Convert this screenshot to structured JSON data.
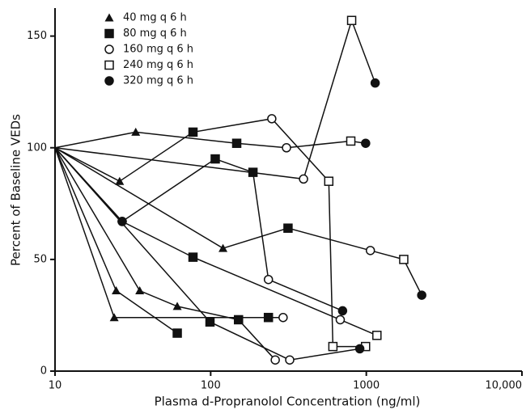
{
  "chart_data": {
    "type": "line",
    "xlabel": "Plasma d-Propranolol Concentration (ng/ml)",
    "ylabel": "Percent of Baseline VEDs",
    "xscale": "log",
    "xlim": [
      10,
      10000
    ],
    "ylim": [
      0,
      160
    ],
    "xticks": [
      10,
      100,
      1000,
      {
        "value": 10000,
        "label": "10,000"
      }
    ],
    "yticks": [
      0,
      50,
      100,
      150
    ],
    "color": "#111111",
    "legend": "upper left",
    "series": [
      {
        "name": "40 mg q 6 h",
        "marker": "triangle"
      },
      {
        "name": "80 mg q 6 h",
        "marker": "square"
      },
      {
        "name": "160 mg q 6 h",
        "marker": "open-circle"
      },
      {
        "name": "240 mg q 6 h",
        "marker": "open-square"
      },
      {
        "name": "320 mg q 6 h",
        "marker": "circle"
      }
    ],
    "lines": [
      {
        "x": [
          10,
          33,
          147,
          307,
          795,
          990
        ],
        "values": [
          100,
          107,
          102,
          100,
          103,
          102
        ],
        "markers": [
          null,
          "triangle",
          "square",
          "open-circle",
          "open-square",
          "circle"
        ]
      },
      {
        "x": [
          10,
          26,
          77,
          247,
          574,
          610,
          989
        ],
        "values": [
          100,
          85,
          107,
          113,
          85,
          11,
          11
        ],
        "markers": [
          null,
          "triangle",
          "square",
          "open-circle",
          "open-square",
          "open-square",
          "open-square"
        ]
      },
      {
        "x": [
          10,
          395,
          805,
          1140
        ],
        "values": [
          100,
          86,
          157,
          129
        ],
        "markers": [
          null,
          "open-circle",
          "open-square",
          "circle"
        ]
      },
      {
        "x": [
          10,
          27,
          107,
          187,
          235,
          704
        ],
        "values": [
          100,
          67,
          95,
          89,
          41,
          27
        ],
        "markers": [
          null,
          "circle",
          "square",
          "square",
          "open-circle",
          "circle"
        ]
      },
      {
        "x": [
          10,
          120,
          314,
          1062,
          1740,
          2270
        ],
        "values": [
          100,
          55,
          64,
          54,
          50,
          34
        ],
        "markers": [
          null,
          "triangle",
          "square",
          "open-circle",
          "open-square",
          "circle"
        ]
      },
      {
        "x": [
          10,
          27,
          77,
          680,
          1170
        ],
        "values": [
          100,
          67,
          51,
          23,
          16
        ],
        "markers": [
          null,
          "circle",
          "square",
          "open-circle",
          "open-square"
        ]
      },
      {
        "x": [
          10,
          24.7,
          61
        ],
        "values": [
          100,
          36,
          17
        ],
        "markers": [
          null,
          "triangle",
          "square"
        ]
      },
      {
        "x": [
          10,
          35,
          61,
          151,
          260
        ],
        "values": [
          100,
          36,
          29,
          23,
          5
        ],
        "markers": [
          null,
          "triangle",
          "triangle",
          "square",
          "open-circle"
        ]
      },
      {
        "x": [
          10,
          24,
          235,
          292
        ],
        "values": [
          100,
          24,
          24,
          24
        ],
        "markers": [
          null,
          "triangle",
          "square",
          "open-circle"
        ]
      },
      {
        "x": [
          10,
          99,
          322,
          908
        ],
        "values": [
          100,
          22,
          5,
          10
        ],
        "markers": [
          null,
          "square",
          "open-circle",
          "circle"
        ]
      }
    ]
  }
}
